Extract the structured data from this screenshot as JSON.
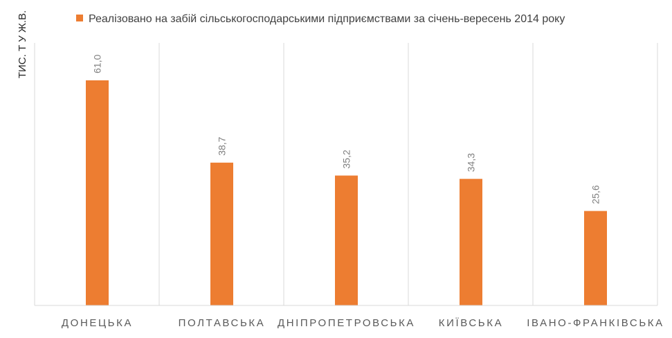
{
  "chart_data": {
    "type": "bar",
    "categories": [
      "ДОНЕЦЬКА",
      "ПОЛТАВСЬКА",
      "ДНІПРОПЕТРОВСЬКА",
      "КИЇВСЬКА",
      "ІВАНО-ФРАНКІВСЬКА"
    ],
    "series": [
      {
        "name": "Реалізовано на забій сільськогосподарськими підприємствами за січень-вересень 2014 року",
        "values": [
          61.0,
          38.7,
          35.2,
          34.3,
          25.6
        ],
        "color": "#ED7D31"
      }
    ],
    "data_labels": [
      "61,0",
      "38,7",
      "35,2",
      "34,3",
      "25,6"
    ],
    "title": "",
    "xlabel": "",
    "ylabel": "ТИС. Т У Ж.В.",
    "ylim": [
      0,
      65
    ],
    "y_axis_visible": false,
    "grid": "vertical category separators",
    "legend_position": "top",
    "data_label_orientation": "vertical"
  }
}
